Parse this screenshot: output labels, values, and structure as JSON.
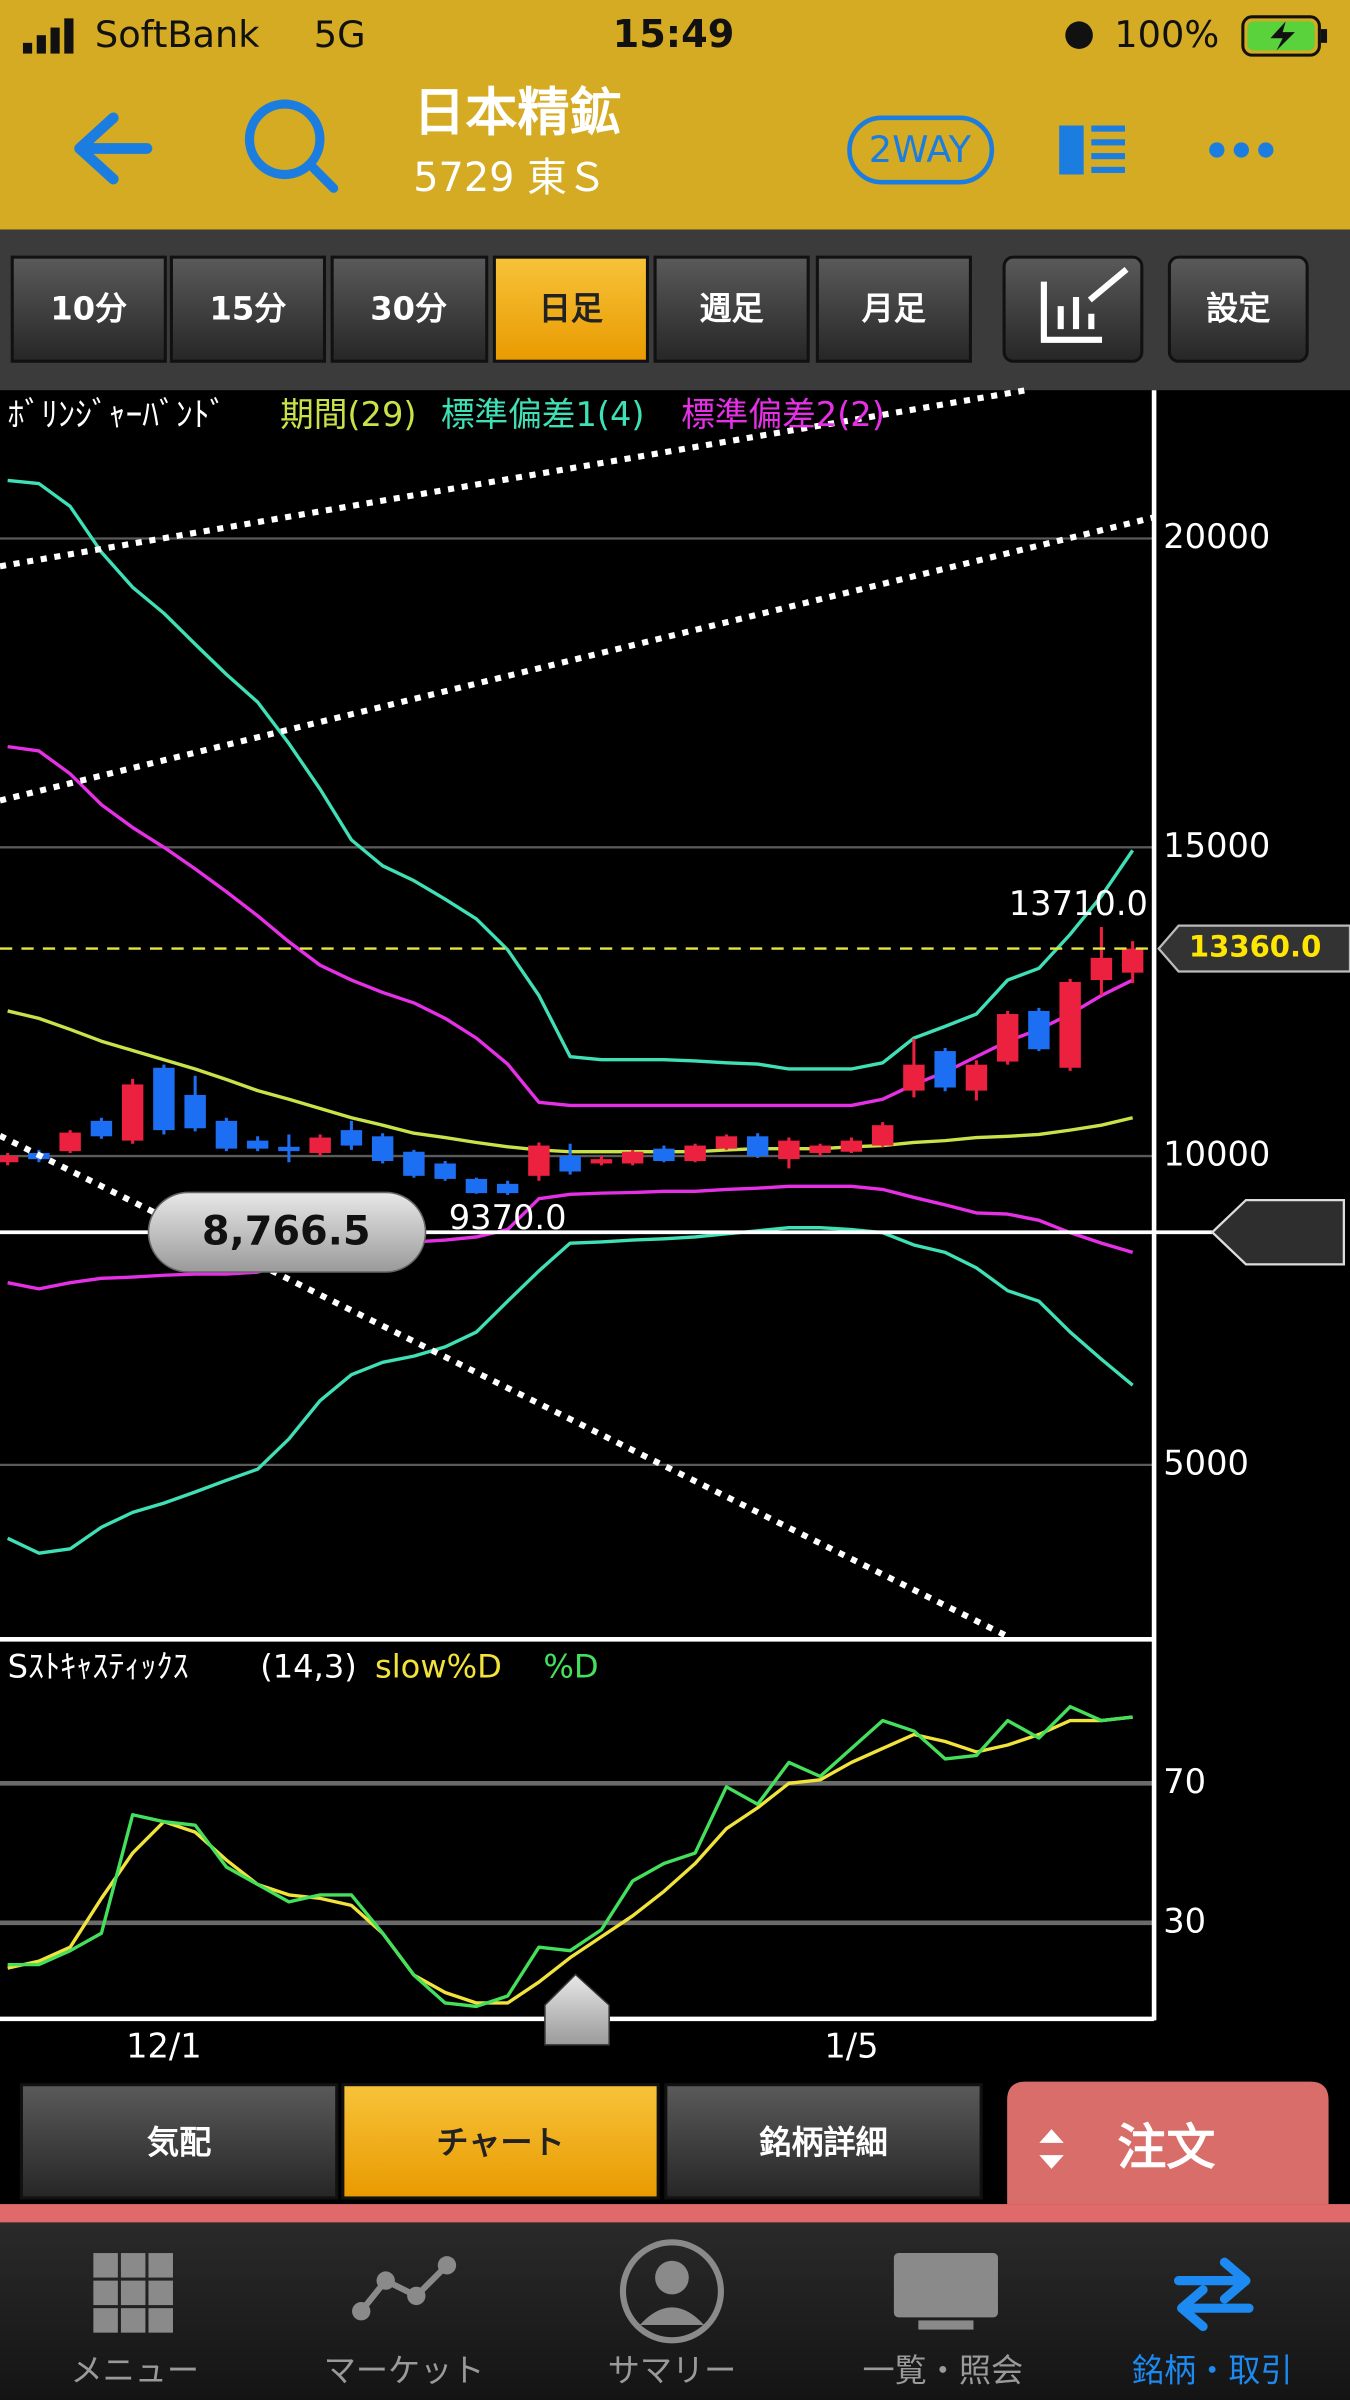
{
  "status_bar": {
    "carrier": "SoftBank",
    "network": "5G",
    "time": "15:49",
    "battery": "100%"
  },
  "header": {
    "title": "日本精鉱",
    "subtitle": "5729 東Ｓ",
    "badge": "2WAY"
  },
  "period_tabs": [
    "10分",
    "15分",
    "30分",
    "日足",
    "週足",
    "月足"
  ],
  "settings_button": "設定",
  "chart_data": {
    "type": "candlestick",
    "title": "ﾎﾞﾘﾝｼﾞｬｰﾊﾞﾝﾄﾞ",
    "categories": [
      null,
      null,
      null,
      null,
      null,
      "12/1",
      null,
      null,
      null,
      null,
      null,
      null,
      null,
      null,
      null,
      null,
      null,
      null,
      null,
      null,
      null,
      null,
      null,
      null,
      null,
      null,
      null,
      "1/5",
      null,
      null,
      null,
      null,
      null,
      null,
      null,
      null,
      null
    ],
    "open": [
      9900,
      10050,
      10080,
      10570,
      10250,
      11430,
      10990,
      10570,
      10250,
      10150,
      10050,
      10420,
      10320,
      10070,
      9880,
      9630,
      9550,
      9680,
      10000,
      9880,
      9880,
      10120,
      9920,
      10120,
      10320,
      9950,
      10050,
      10070,
      10170,
      11060,
      11700,
      11060,
      11530,
      12350,
      11430,
      12850,
      12970
    ],
    "high": [
      10050,
      10100,
      10420,
      10620,
      11250,
      11480,
      11300,
      10620,
      10320,
      10350,
      10350,
      10570,
      10370,
      10100,
      9920,
      9650,
      9600,
      10220,
      10200,
      10000,
      10100,
      10170,
      10200,
      10350,
      10370,
      10300,
      10200,
      10300,
      10550,
      11900,
      11750,
      11550,
      12350,
      12400,
      12870,
      13710,
      13480
    ],
    "low": [
      9850,
      9900,
      10050,
      10280,
      10200,
      10350,
      10400,
      10080,
      10080,
      9900,
      10000,
      10100,
      9880,
      9650,
      9600,
      9390,
      9370,
      9600,
      9700,
      9850,
      9850,
      9900,
      9900,
      10100,
      9970,
      9800,
      10000,
      10050,
      10150,
      10950,
      11050,
      10900,
      11480,
      11700,
      11380,
      12600,
      12800
    ],
    "close": [
      10000,
      9950,
      10380,
      10320,
      11160,
      10420,
      10450,
      10120,
      10120,
      10080,
      10300,
      10170,
      9920,
      9680,
      9630,
      9400,
      9400,
      10170,
      9750,
      9950,
      10070,
      9920,
      10170,
      10320,
      10000,
      10250,
      10170,
      10250,
      10500,
      11480,
      11110,
      11480,
      12300,
      11730,
      12820,
      13210,
      13360
    ],
    "up_color": "#ec2140",
    "down_color": "#1c6ff2",
    "bands": [
      {
        "name": "期間(29)",
        "color": "#c9e24a",
        "values": [
          12350,
          12230,
          12050,
          11860,
          11710,
          11560,
          11410,
          11240,
          11060,
          10920,
          10770,
          10620,
          10500,
          10370,
          10300,
          10220,
          10150,
          10100,
          10070,
          10070,
          10070,
          10070,
          10070,
          10100,
          10120,
          10120,
          10120,
          10150,
          10170,
          10220,
          10250,
          10300,
          10320,
          10350,
          10420,
          10500,
          10620
        ]
      },
      {
        "name": "標準偏差1(4)",
        "color": "#3fe0b6",
        "upper": [
          20940,
          20890,
          20520,
          19780,
          19210,
          18790,
          18290,
          17800,
          17350,
          16680,
          15940,
          15120,
          14700,
          14460,
          14160,
          13840,
          13340,
          12600,
          11610,
          11560,
          11560,
          11560,
          11540,
          11510,
          11490,
          11410,
          11410,
          11410,
          11510,
          11910,
          12100,
          12300,
          12850,
          13040,
          13590,
          14210,
          14950
        ],
        "lower": [
          3810,
          3570,
          3640,
          3990,
          4230,
          4380,
          4560,
          4750,
          4930,
          5420,
          6040,
          6460,
          6660,
          6760,
          6910,
          7150,
          7650,
          8140,
          8590,
          8610,
          8640,
          8660,
          8690,
          8740,
          8790,
          8840,
          8840,
          8810,
          8760,
          8560,
          8440,
          8190,
          7820,
          7650,
          7150,
          6710,
          6290
        ]
      },
      {
        "name": "標準偏差2(2)",
        "color": "#e530e6",
        "upper": [
          16630,
          16560,
          16190,
          15690,
          15320,
          15000,
          14650,
          14280,
          13890,
          13470,
          13090,
          12850,
          12650,
          12480,
          12230,
          11910,
          11490,
          10870,
          10820,
          10820,
          10820,
          10820,
          10820,
          10820,
          10820,
          10820,
          10820,
          10820,
          10920,
          11160,
          11360,
          11610,
          11860,
          12050,
          12300,
          12600,
          12850
        ],
        "lower": [
          7950,
          7850,
          7950,
          8020,
          8040,
          8070,
          8090,
          8090,
          8120,
          8270,
          8390,
          8520,
          8590,
          8610,
          8640,
          8690,
          8810,
          9310,
          9380,
          9400,
          9410,
          9430,
          9430,
          9460,
          9480,
          9510,
          9510,
          9510,
          9460,
          9330,
          9210,
          9080,
          9060,
          8960,
          8760,
          8590,
          8440
        ]
      }
    ],
    "ylim": [
      2200,
      22400
    ],
    "yticks": [
      5000,
      10000,
      15000,
      20000
    ],
    "grid": true,
    "annotations": {
      "high": {
        "value": 13710,
        "label": "13710.0"
      },
      "low": {
        "value": 9370,
        "label": "9370.0"
      },
      "last": {
        "value": 13360,
        "label": "13360.0"
      },
      "crosshair": {
        "value": 8766.5,
        "label": "8,766.5"
      }
    },
    "stochastic": {
      "title": "Sｽﾄｷｬｽﾃｨｯｸｽ",
      "params": "(14,3)",
      "series": [
        {
          "name": "slow%D",
          "color": "#f2e33c",
          "values": [
            17,
            19,
            23,
            37,
            50,
            59,
            56,
            48,
            41,
            38,
            37,
            35,
            27,
            15,
            10,
            7,
            7,
            13,
            20,
            26,
            32,
            39,
            47,
            57,
            63,
            70,
            71,
            76,
            80,
            84,
            82,
            79,
            81,
            84,
            88,
            88,
            89
          ]
        },
        {
          "name": "%D",
          "color": "#44e05c",
          "values": [
            18,
            18,
            22,
            27,
            61,
            59,
            58,
            46,
            41,
            36,
            38,
            38,
            27,
            15,
            7,
            6,
            9,
            23,
            22,
            28,
            42,
            47,
            50,
            69,
            64,
            76,
            72,
            80,
            88,
            85,
            77,
            78,
            88,
            83,
            92,
            88,
            89
          ]
        }
      ],
      "ylim": [
        2,
        110
      ],
      "yticks": [
        30,
        70
      ]
    }
  },
  "bottom_tabs": [
    "気配",
    "チャート",
    "銘柄詳細"
  ],
  "order_button": "注文",
  "nav": [
    "メニュー",
    "マーケット",
    "サマリー",
    "一覧・照会",
    "銘柄・取引"
  ]
}
